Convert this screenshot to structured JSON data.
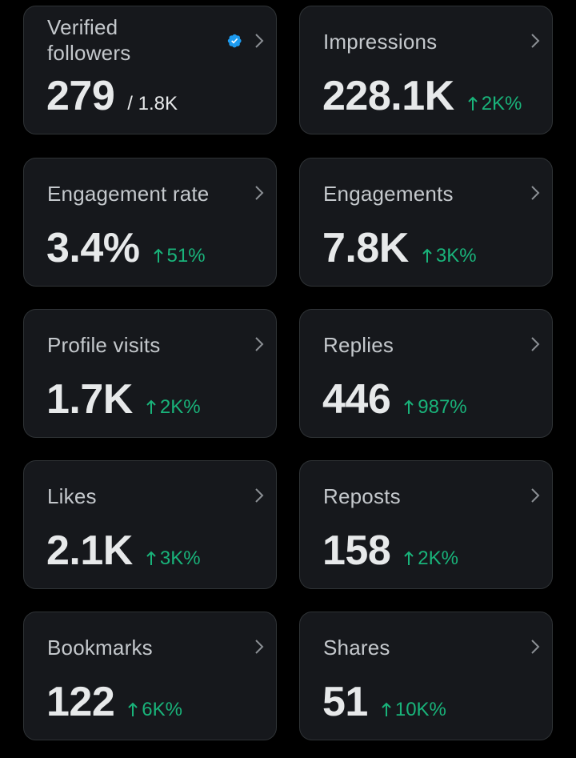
{
  "colors": {
    "background": "#000000",
    "card": "#16181c",
    "card_border": "#2f3336",
    "label": "#c4c8cc",
    "value": "#e7e9ea",
    "positive_delta": "#19b37a",
    "verified_badge": "#1d9bf0"
  },
  "icons": {
    "chevron": "chevron-right-icon",
    "verified": "verified-badge-icon",
    "delta": "arrow-up-icon"
  },
  "cards": [
    {
      "label": "Verified followers",
      "value": "279",
      "sub": "/ 1.8K",
      "verified": true
    },
    {
      "label": "Impressions",
      "value": "228.1K",
      "delta": "2K%"
    },
    {
      "label": "Engagement rate",
      "value": "3.4%",
      "delta": "51%"
    },
    {
      "label": "Engagements",
      "value": "7.8K",
      "delta": "3K%"
    },
    {
      "label": "Profile visits",
      "value": "1.7K",
      "delta": "2K%"
    },
    {
      "label": "Replies",
      "value": "446",
      "delta": "987%"
    },
    {
      "label": "Likes",
      "value": "2.1K",
      "delta": "3K%"
    },
    {
      "label": "Reposts",
      "value": "158",
      "delta": "2K%"
    },
    {
      "label": "Bookmarks",
      "value": "122",
      "delta": "6K%"
    },
    {
      "label": "Shares",
      "value": "51",
      "delta": "10K%"
    }
  ]
}
